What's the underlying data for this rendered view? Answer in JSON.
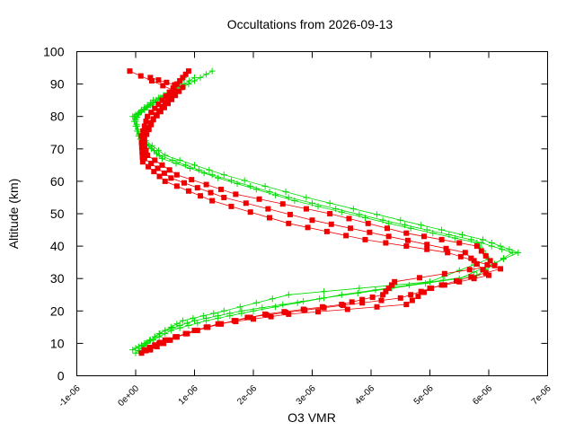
{
  "chart_data": {
    "type": "line",
    "title": "Occultations from 2026-09-13",
    "xlabel": "O3 VMR",
    "ylabel": "Altitude (km)",
    "xlim": [
      -1e-06,
      7e-06
    ],
    "ylim": [
      0,
      100
    ],
    "x_ticks": [
      {
        "value": -1e-06,
        "label": "-1e-06"
      },
      {
        "value": 0,
        "label": "0e+00"
      },
      {
        "value": 1e-06,
        "label": "1e-06"
      },
      {
        "value": 2e-06,
        "label": "2e-06"
      },
      {
        "value": 3e-06,
        "label": "3e-06"
      },
      {
        "value": 4e-06,
        "label": "4e-06"
      },
      {
        "value": 5e-06,
        "label": "5e-06"
      },
      {
        "value": 6e-06,
        "label": "6e-06"
      },
      {
        "value": 7e-06,
        "label": "7e-06"
      }
    ],
    "y_ticks": [
      0,
      10,
      20,
      30,
      40,
      50,
      60,
      70,
      80,
      90,
      100
    ],
    "grid": false,
    "series": [
      {
        "color": "#00dd00",
        "marker": "plus",
        "profiles": [
          {
            "x": [
              8.2e-07,
              6e-07,
              3.5e-07,
              1.5e-07,
              -5e-08,
              5e-08,
              4e-07,
              1.3e-06,
              2.6e-06,
              4.2e-06,
              5.7e-06,
              6.4e-06,
              5.8e-06,
              3.5e-06,
              2e-06,
              1.2e-06,
              6e-07,
              2e-07,
              0
            ],
            "y": [
              92,
              88,
              85,
              82,
              80,
              74,
              68,
              62,
              55,
              48,
              42,
              38,
              31,
              25,
              20,
              17,
              14,
              10,
              7
            ]
          },
          {
            "x": [
              1.3e-06,
              9e-07,
              5e-07,
              2e-07,
              -2e-08,
              6e-08,
              5e-07,
              1.5e-06,
              2.9e-06,
              4.5e-06,
              5.9e-06,
              6.5e-06,
              5.5e-06,
              3.2e-06,
              1.8e-06,
              1e-06,
              5e-07,
              1.5e-07,
              -5e-08
            ],
            "y": [
              94,
              90,
              86,
              83,
              80,
              74,
              68,
              62,
              55,
              48,
              42,
              38,
              30,
              24,
              20,
              17,
              14,
              10,
              8
            ]
          },
          {
            "x": [
              1e-06,
              6.5e-07,
              3e-07,
              1e-07,
              0,
              8e-08,
              4.5e-07,
              1.4e-06,
              2.7e-06,
              4.3e-06,
              5.8e-06,
              6e-06,
              5e-06,
              2.6e-06,
              1.5e-06,
              8e-07,
              4e-07,
              1e-07
            ],
            "y": [
              92,
              88,
              85,
              82,
              79,
              73,
              67,
              61,
              54,
              47,
              41,
              36,
              29,
              25,
              20,
              17,
              13,
              9
            ]
          }
        ]
      },
      {
        "color": "#ee0000",
        "marker": "square",
        "profiles": [
          {
            "x": [
              -1e-07,
              6.5e-07,
              4.5e-07,
              2.5e-07,
              1e-07,
              1.2e-07,
              5e-07,
              1.3e-06,
              2.6e-06,
              3.9e-06,
              5.3e-06,
              6.2e-06,
              5.2e-06,
              4.5e-06,
              3.2e-06,
              1.9e-06,
              1e-06,
              4e-07,
              1e-07
            ],
            "y": [
              94,
              88,
              83,
              78,
              72,
              66,
              60,
              54,
              47,
              42,
              38,
              33,
              28,
              24,
              21,
              18,
              14,
              10,
              7
            ]
          },
          {
            "x": [
              2.5e-07,
              8e-07,
              5.5e-07,
              3e-07,
              1.5e-07,
              1.5e-07,
              6e-07,
              1.5e-06,
              3e-06,
              4.3e-06,
              5.6e-06,
              6e-06,
              5e-06,
              4.6e-06,
              2.6e-06,
              1.4e-06,
              7e-07,
              2.5e-07
            ],
            "y": [
              92,
              89,
              84,
              79,
              73,
              67,
              61,
              55,
              48,
              43,
              38,
              31,
              27,
              22,
              19,
              16,
              12,
              8
            ]
          },
          {
            "x": [
              9e-07,
              7e-07,
              4.5e-07,
              2e-07,
              1e-07,
              2e-07,
              7e-07,
              1.7e-06,
              3.3e-06,
              4.6e-06,
              5.8e-06,
              6.1e-06,
              4.4e-06,
              4.2e-06,
              3.5e-06,
              2.2e-06,
              1.2e-06,
              5e-07,
              1.5e-07
            ],
            "y": [
              94,
              90,
              85,
              80,
              74,
              68,
              62,
              56,
              50,
              44,
              40,
              34,
              29,
              25,
              22,
              19,
              15,
              11,
              8
            ]
          }
        ]
      }
    ]
  }
}
